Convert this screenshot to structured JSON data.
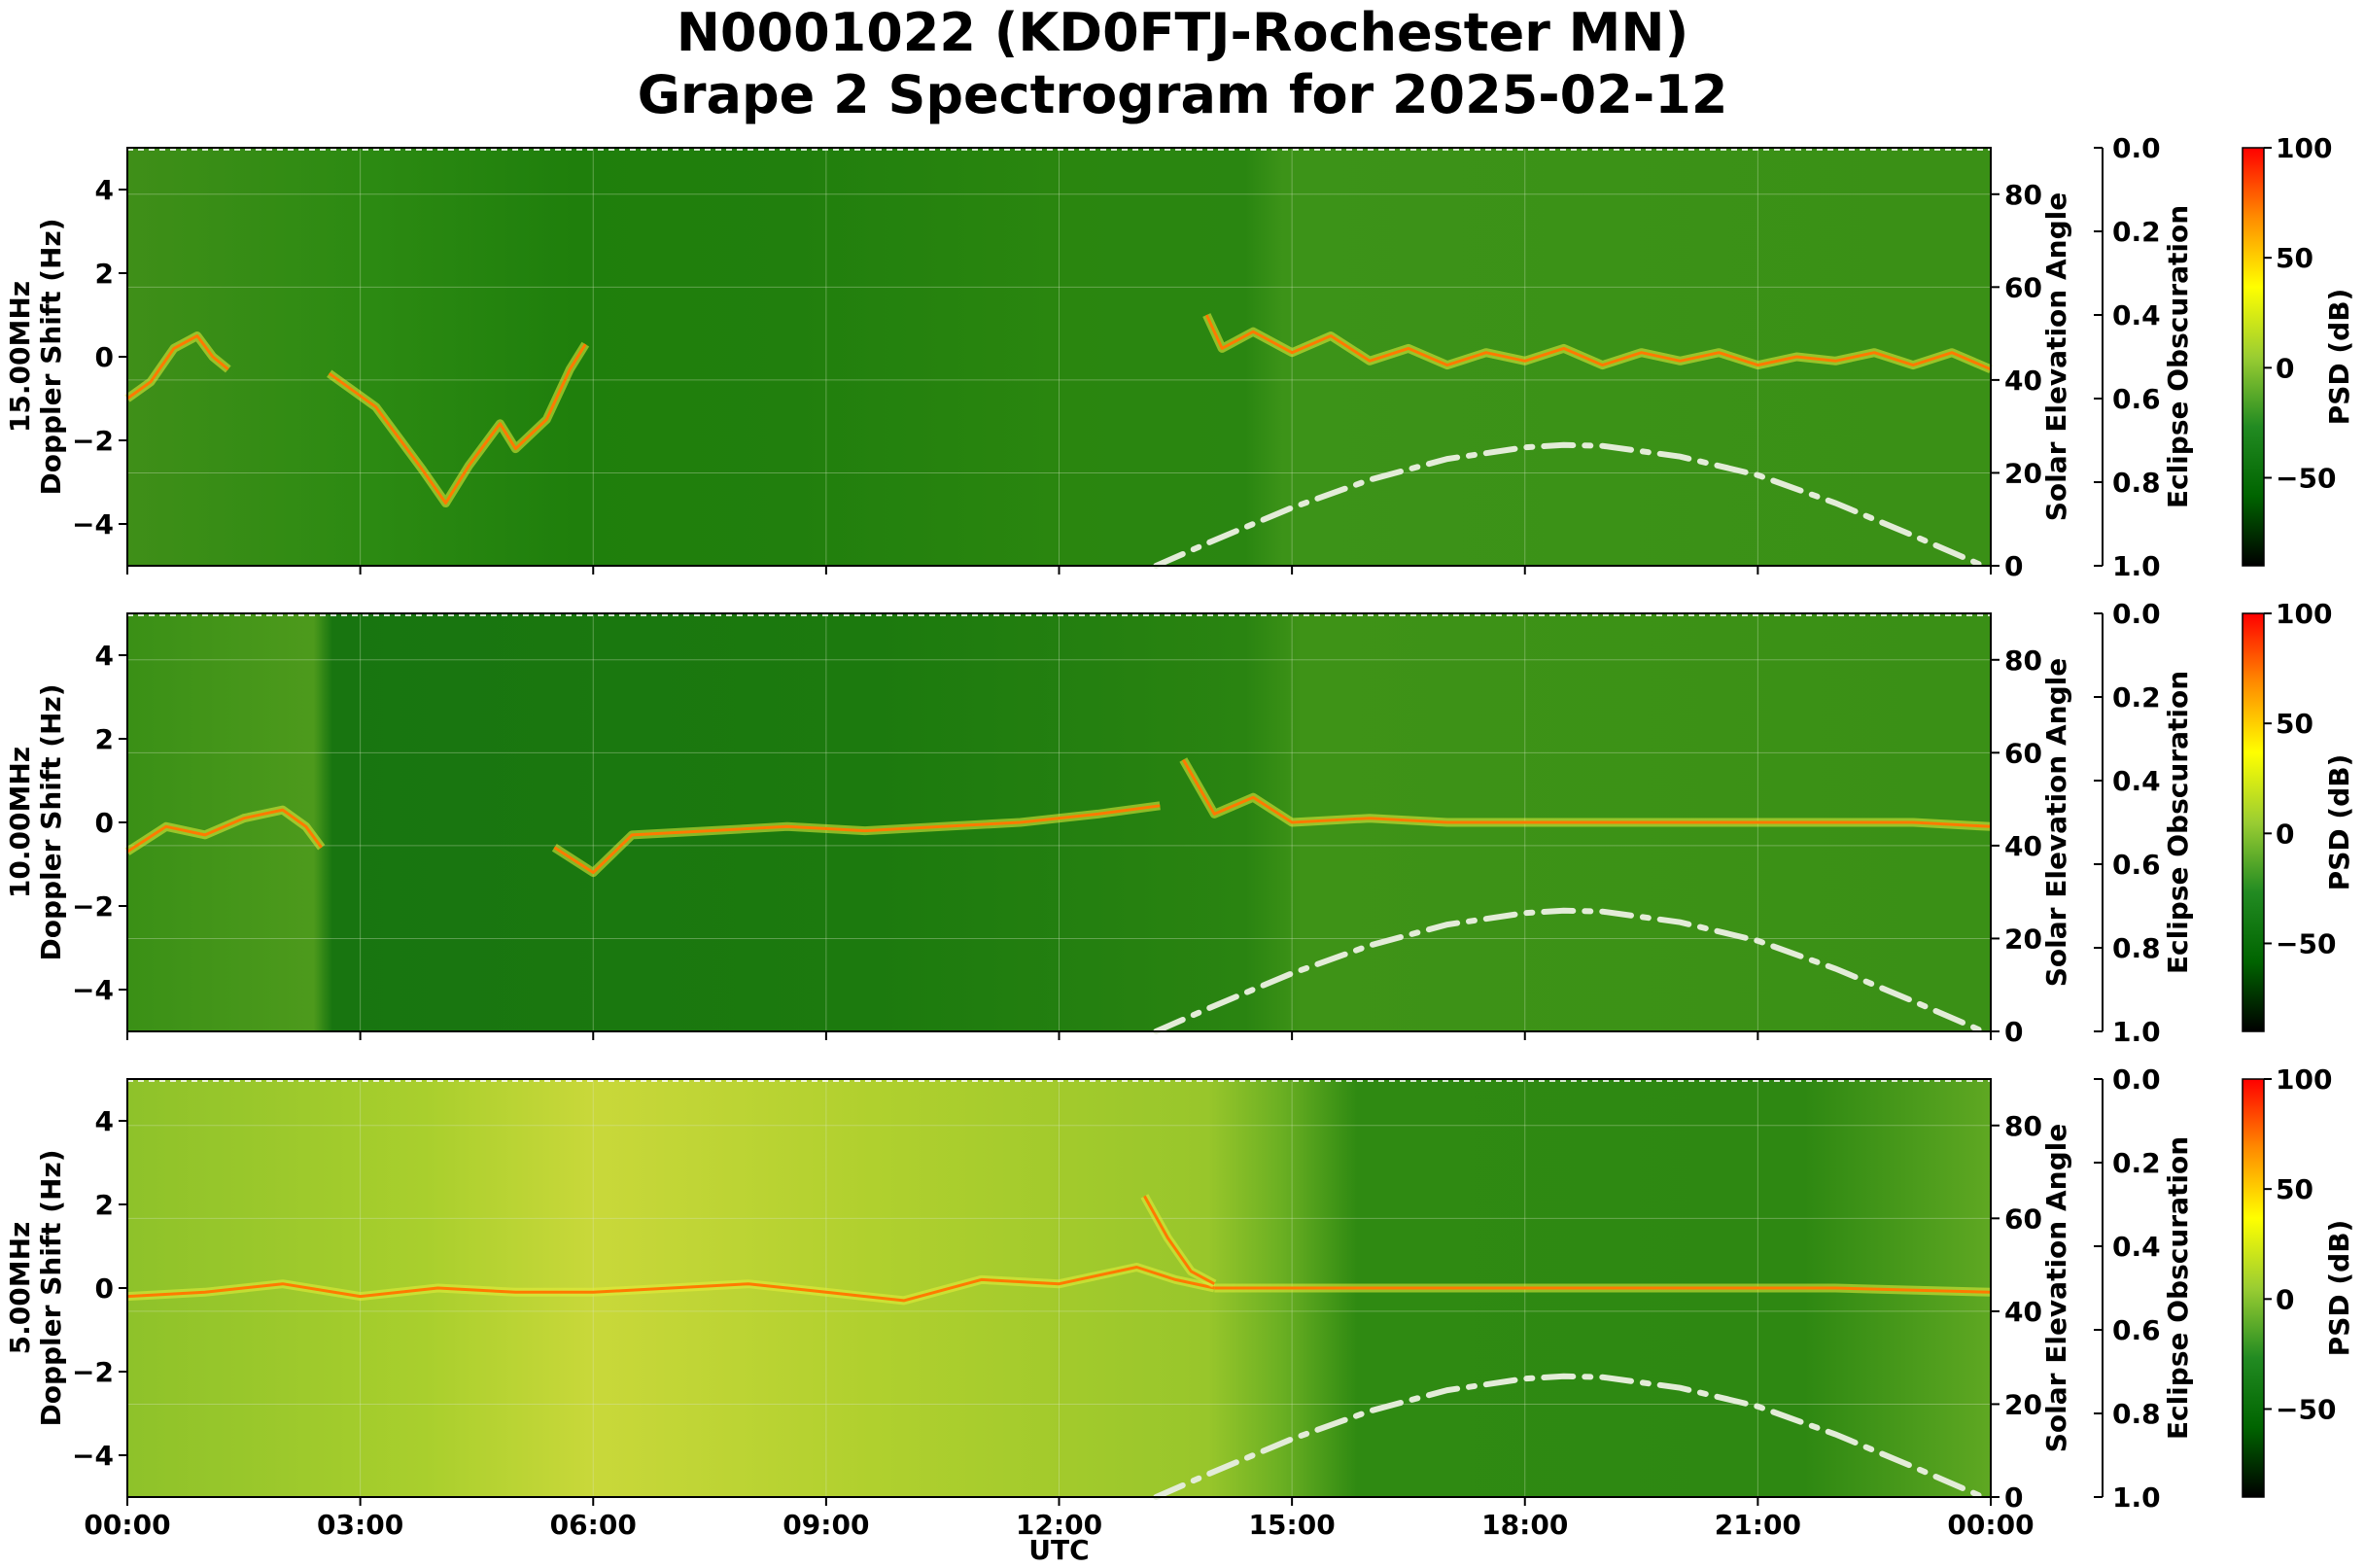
{
  "title_line1": "N0001022 (KD0FTJ-Rochester MN)",
  "title_line2": "Grape 2 Spectrogram for 2025-02-12",
  "chart_data": {
    "type": "heatmap",
    "xlabel": "UTC",
    "x_ticks": [
      "00:00",
      "03:00",
      "06:00",
      "09:00",
      "12:00",
      "15:00",
      "18:00",
      "21:00",
      "00:00"
    ],
    "x_range_hours": [
      0,
      24
    ],
    "grid": true,
    "solar_elevation": {
      "ylabel": "Solar Elevation Angle",
      "ticks": [
        0,
        20,
        40,
        60,
        80
      ],
      "ylim": [
        0,
        90
      ],
      "curve": [
        [
          13.25,
          0
        ],
        [
          14,
          5.5
        ],
        [
          15,
          12.5
        ],
        [
          16,
          18.5
        ],
        [
          17,
          23
        ],
        [
          18,
          25.5
        ],
        [
          18.5,
          26
        ],
        [
          19,
          25.8
        ],
        [
          20,
          23.5
        ],
        [
          21,
          19.5
        ],
        [
          22,
          13.5
        ],
        [
          23,
          6.5
        ],
        [
          23.9,
          0
        ]
      ]
    },
    "eclipse": {
      "ylabel": "Eclipse Obscuration",
      "ticks": [
        "0.0",
        "0.2",
        "0.4",
        "0.6",
        "0.8",
        "1.0"
      ],
      "ylim": [
        0,
        1
      ]
    },
    "colorbar": {
      "label": "PSD (dB)",
      "ticks": [
        100,
        50,
        0,
        -50
      ],
      "range": [
        -90,
        100
      ],
      "colors": [
        "#000000",
        "#006400",
        "#228b22",
        "#9acd32",
        "#ffff00",
        "#ff8c00",
        "#ff0000"
      ]
    },
    "panels": [
      {
        "freq_label": "15.00MHz",
        "ylabel": "Doppler Shift (Hz)",
        "yticks": [
          4,
          2,
          0,
          -2,
          -4
        ],
        "ylim": [
          -5,
          5
        ],
        "traces": [
          [
            [
              0,
              -1
            ],
            [
              0.3,
              -0.6
            ],
            [
              0.6,
              0.2
            ],
            [
              0.9,
              0.5
            ],
            [
              1.1,
              0
            ],
            [
              1.3,
              -0.3
            ]
          ],
          [
            [
              2.6,
              -0.4
            ],
            [
              3.2,
              -1.2
            ],
            [
              3.8,
              -2.7
            ],
            [
              4.1,
              -3.5
            ],
            [
              4.4,
              -2.6
            ],
            [
              4.8,
              -1.6
            ],
            [
              5.0,
              -2.2
            ],
            [
              5.4,
              -1.5
            ],
            [
              5.7,
              -0.3
            ],
            [
              5.9,
              0.3
            ]
          ],
          [
            [
              13.9,
              1
            ],
            [
              14.1,
              0.2
            ],
            [
              14.5,
              0.6
            ],
            [
              15,
              0.1
            ],
            [
              15.5,
              0.5
            ],
            [
              16,
              -0.1
            ],
            [
              16.5,
              0.2
            ],
            [
              17,
              -0.2
            ],
            [
              17.5,
              0.1
            ],
            [
              18,
              -0.1
            ],
            [
              18.5,
              0.2
            ],
            [
              19,
              -0.2
            ],
            [
              19.5,
              0.1
            ],
            [
              20,
              -0.1
            ],
            [
              20.5,
              0.1
            ],
            [
              21,
              -0.2
            ],
            [
              21.5,
              0
            ],
            [
              22,
              -0.1
            ],
            [
              22.5,
              0.1
            ],
            [
              23,
              -0.2
            ],
            [
              23.5,
              0.1
            ],
            [
              24,
              -0.3
            ]
          ]
        ]
      },
      {
        "freq_label": "10.00MHz",
        "ylabel": "Doppler Shift (Hz)",
        "yticks": [
          4,
          2,
          0,
          -2,
          -4
        ],
        "ylim": [
          -5,
          5
        ],
        "traces": [
          [
            [
              0,
              -0.7
            ],
            [
              0.5,
              -0.1
            ],
            [
              1,
              -0.3
            ],
            [
              1.5,
              0.1
            ],
            [
              2,
              0.3
            ],
            [
              2.3,
              -0.1
            ],
            [
              2.5,
              -0.6
            ]
          ],
          [
            [
              5.5,
              -0.6
            ],
            [
              6,
              -1.2
            ],
            [
              6.5,
              -0.3
            ],
            [
              7.5,
              -0.2
            ],
            [
              8.5,
              -0.1
            ],
            [
              9.5,
              -0.2
            ],
            [
              10.5,
              -0.1
            ],
            [
              11.5,
              0
            ],
            [
              12.5,
              0.2
            ],
            [
              13.3,
              0.4
            ]
          ],
          [
            [
              13.6,
              1.5
            ],
            [
              14,
              0.2
            ],
            [
              14.5,
              0.6
            ],
            [
              15,
              0
            ],
            [
              16,
              0.1
            ],
            [
              17,
              0
            ],
            [
              18,
              0
            ],
            [
              19,
              0
            ],
            [
              20,
              0
            ],
            [
              21,
              0
            ],
            [
              22,
              0
            ],
            [
              23,
              0
            ],
            [
              24,
              -0.1
            ]
          ]
        ]
      },
      {
        "freq_label": "5.00MHz",
        "ylabel": "Doppler Shift (Hz)",
        "yticks": [
          4,
          2,
          0,
          -2,
          -4
        ],
        "ylim": [
          -5,
          5
        ],
        "traces": [
          [
            [
              0,
              -0.2
            ],
            [
              1,
              -0.1
            ],
            [
              2,
              0.1
            ],
            [
              3,
              -0.2
            ],
            [
              4,
              0
            ],
            [
              5,
              -0.1
            ],
            [
              6,
              -0.1
            ],
            [
              7,
              0
            ],
            [
              8,
              0.1
            ],
            [
              9,
              -0.1
            ],
            [
              10,
              -0.3
            ],
            [
              11,
              0.2
            ],
            [
              12,
              0.1
            ],
            [
              13,
              0.5
            ],
            [
              13.5,
              0.2
            ],
            [
              14,
              0
            ]
          ],
          [
            [
              13.1,
              2.2
            ],
            [
              13.4,
              1.2
            ],
            [
              13.7,
              0.4
            ],
            [
              14,
              0.1
            ]
          ],
          [
            [
              14,
              0
            ],
            [
              16,
              0
            ],
            [
              18,
              0
            ],
            [
              20,
              0
            ],
            [
              22,
              0
            ],
            [
              24,
              -0.1
            ]
          ]
        ]
      }
    ]
  }
}
